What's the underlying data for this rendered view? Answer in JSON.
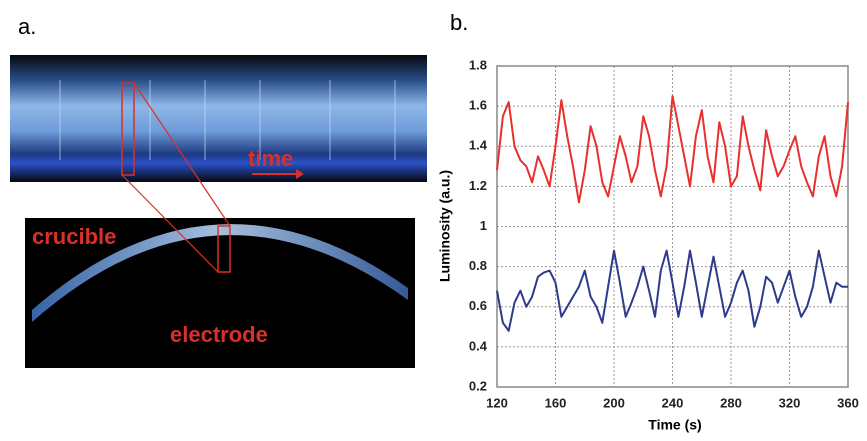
{
  "panel_a": {
    "label": "a.",
    "texts": [
      "time",
      "crucible",
      "electrode"
    ]
  },
  "chart_data": {
    "type": "line",
    "label": "b.",
    "x_label": "Time (s)",
    "y_label": "Luminosity  (a.u.)",
    "x": [
      120,
      124,
      128,
      132,
      136,
      140,
      144,
      148,
      152,
      156,
      160,
      164,
      168,
      172,
      176,
      180,
      184,
      188,
      192,
      196,
      200,
      204,
      208,
      212,
      216,
      220,
      224,
      228,
      232,
      236,
      240,
      244,
      248,
      252,
      256,
      260,
      264,
      268,
      272,
      276,
      280,
      284,
      288,
      292,
      296,
      300,
      304,
      308,
      312,
      316,
      320,
      324,
      328,
      332,
      336,
      340,
      344,
      348,
      352,
      356,
      360
    ],
    "series": [
      {
        "color": "#e8302c",
        "values": [
          1.28,
          1.55,
          1.62,
          1.4,
          1.33,
          1.3,
          1.22,
          1.35,
          1.28,
          1.2,
          1.4,
          1.63,
          1.45,
          1.3,
          1.12,
          1.28,
          1.5,
          1.4,
          1.22,
          1.15,
          1.3,
          1.45,
          1.35,
          1.22,
          1.3,
          1.55,
          1.45,
          1.28,
          1.15,
          1.3,
          1.65,
          1.5,
          1.35,
          1.2,
          1.45,
          1.58,
          1.35,
          1.22,
          1.52,
          1.4,
          1.2,
          1.25,
          1.55,
          1.4,
          1.28,
          1.18,
          1.48,
          1.35,
          1.25,
          1.3,
          1.38,
          1.45,
          1.3,
          1.22,
          1.15,
          1.35,
          1.45,
          1.25,
          1.15,
          1.3,
          1.62
        ]
      },
      {
        "color": "#2e3a8c",
        "values": [
          0.68,
          0.52,
          0.48,
          0.62,
          0.68,
          0.6,
          0.65,
          0.75,
          0.77,
          0.78,
          0.72,
          0.55,
          0.6,
          0.65,
          0.7,
          0.78,
          0.65,
          0.6,
          0.52,
          0.7,
          0.88,
          0.72,
          0.55,
          0.62,
          0.7,
          0.8,
          0.68,
          0.55,
          0.78,
          0.88,
          0.72,
          0.55,
          0.7,
          0.88,
          0.72,
          0.55,
          0.7,
          0.85,
          0.7,
          0.55,
          0.62,
          0.72,
          0.78,
          0.68,
          0.5,
          0.6,
          0.75,
          0.72,
          0.62,
          0.7,
          0.78,
          0.65,
          0.55,
          0.6,
          0.7,
          0.88,
          0.75,
          0.62,
          0.72,
          0.7,
          0.7
        ]
      }
    ],
    "xlim": [
      120,
      360
    ],
    "xticks": [
      120,
      160,
      200,
      240,
      280,
      320,
      360
    ],
    "ylim": [
      0.2,
      1.8
    ],
    "yticks": [
      0.2,
      0.4,
      0.6,
      0.8,
      1,
      1.2,
      1.4,
      1.6,
      1.8
    ],
    "grid": true
  }
}
